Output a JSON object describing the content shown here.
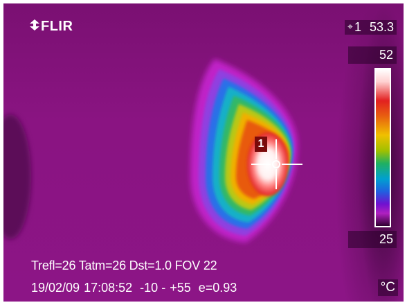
{
  "camera": {
    "brand": "FLIR",
    "spot": {
      "symbol": "⌖",
      "index": "1",
      "value": "53.3"
    },
    "scale": {
      "max": "52",
      "min": "25",
      "unit": "°C",
      "palette": "iron-rainbow"
    },
    "spot_marker_label": "1",
    "parameters": "Trefl=26 Tatm=26 Dst=1.0 FOV 22",
    "status": {
      "date": "19/02/09",
      "time": "17:08:52",
      "range_low": "-10 -",
      "range_high": "+55",
      "emissivity": "e=0.93"
    }
  },
  "colors": {
    "background": "#8a1482",
    "hot": "#ffffff",
    "text": "#ffffff"
  },
  "icons": {
    "logo_mark": "flir-logo-icon",
    "crosshair": "spot-crosshair-icon"
  }
}
